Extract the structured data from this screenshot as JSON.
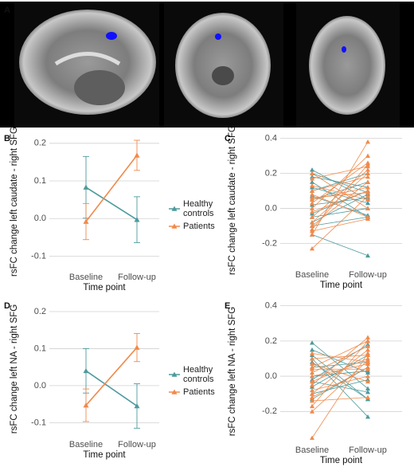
{
  "panel_a_label": "A",
  "chart_data": [
    {
      "type": "line",
      "panel": "B",
      "y_label": "rsFC change left caudate - right SFG",
      "x_label": "Time point",
      "categories": [
        "Baseline",
        "Follow-up"
      ],
      "ylim": [
        -0.135,
        0.225
      ],
      "yticks": [
        -0.1,
        {
          "value": 0,
          "label": "0.0"
        },
        0.1,
        0.2
      ],
      "grid": true,
      "series": [
        {
          "name": "Healthy controls",
          "color": "#4e9a9c",
          "values": [
            0.083,
            -0.003
          ],
          "errors": [
            0.082,
            0.061
          ]
        },
        {
          "name": "Patients",
          "color": "#f08a4b",
          "values": [
            -0.008,
            0.168
          ],
          "errors": [
            0.048,
            0.04
          ]
        }
      ]
    },
    {
      "type": "spaghetti",
      "panel": "C",
      "y_label": "rsFC change left caudate - right SFG",
      "x_label": "Time point",
      "categories": [
        "Baseline",
        "Follow-up"
      ],
      "ylim": [
        -0.335,
        0.43
      ],
      "yticks": [
        -0.2,
        {
          "value": 0,
          "label": "0.0"
        },
        0.2,
        0.4
      ],
      "grid": true,
      "series": [
        {
          "color": "#4e9a9c",
          "subjects": [
            [
              0.22,
              0.05
            ],
            [
              0.2,
              0.09
            ],
            [
              0.18,
              0.12
            ],
            [
              0.15,
              -0.05
            ],
            [
              0.1,
              0.2
            ],
            [
              0.05,
              0.15
            ],
            [
              0.02,
              0.06
            ],
            [
              -0.03,
              0.1
            ],
            [
              -0.05,
              0.0
            ],
            [
              -0.1,
              -0.05
            ],
            [
              -0.15,
              -0.27
            ],
            [
              0.12,
              0.03
            ],
            [
              0.07,
              -0.04
            ],
            [
              -0.08,
              0.08
            ]
          ]
        },
        {
          "color": "#f08a4b",
          "subjects": [
            [
              -0.23,
              0.07
            ],
            [
              -0.15,
              0.38
            ],
            [
              -0.12,
              0.25
            ],
            [
              -0.1,
              0.15
            ],
            [
              -0.08,
              0.2
            ],
            [
              -0.05,
              0.22
            ],
            [
              -0.02,
              0.1
            ],
            [
              0.0,
              0.3
            ],
            [
              0.03,
              0.26
            ],
            [
              0.05,
              0.12
            ],
            [
              0.08,
              -0.05
            ],
            [
              0.1,
              0.18
            ],
            [
              0.13,
              0.05
            ],
            [
              0.17,
              0.24
            ],
            [
              0.2,
              0.0
            ],
            [
              -0.13,
              -0.06
            ],
            [
              0.06,
              0.09
            ]
          ]
        }
      ]
    },
    {
      "type": "line",
      "panel": "D",
      "y_label": "rsFC change left NA - right SFG",
      "x_label": "Time point",
      "categories": [
        "Baseline",
        "Follow-up"
      ],
      "ylim": [
        -0.138,
        0.228
      ],
      "yticks": [
        -0.1,
        {
          "value": 0,
          "label": "0.0"
        },
        0.1,
        0.2
      ],
      "grid": true,
      "series": [
        {
          "name": "Healthy controls",
          "color": "#4e9a9c",
          "values": [
            0.04,
            -0.055
          ],
          "errors": [
            0.06,
            0.06
          ]
        },
        {
          "name": "Patients",
          "color": "#f08a4b",
          "values": [
            -0.053,
            0.103
          ],
          "errors": [
            0.044,
            0.038
          ]
        }
      ]
    },
    {
      "type": "spaghetti",
      "panel": "E",
      "y_label": "rsFC change left NA - right SFG",
      "x_label": "Time point",
      "categories": [
        "Baseline",
        "Follow-up"
      ],
      "ylim": [
        -0.375,
        0.43
      ],
      "yticks": [
        -0.2,
        {
          "value": 0,
          "label": "0.0"
        },
        0.2,
        0.4
      ],
      "grid": true,
      "series": [
        {
          "color": "#4e9a9c",
          "subjects": [
            [
              0.19,
              -0.07
            ],
            [
              0.15,
              0.02
            ],
            [
              0.12,
              -0.13
            ],
            [
              0.1,
              -0.23
            ],
            [
              0.05,
              0.08
            ],
            [
              0.0,
              0.03
            ],
            [
              -0.03,
              -0.09
            ],
            [
              -0.06,
              0.12
            ],
            [
              -0.1,
              -0.02
            ],
            [
              -0.13,
              0.05
            ],
            [
              0.08,
              -0.13
            ],
            [
              -0.02,
              0.18
            ]
          ]
        },
        {
          "color": "#f08a4b",
          "subjects": [
            [
              -0.35,
              0.13
            ],
            [
              -0.17,
              0.2
            ],
            [
              -0.12,
              0.05
            ],
            [
              -0.1,
              0.15
            ],
            [
              -0.08,
              0.0
            ],
            [
              -0.05,
              0.22
            ],
            [
              -0.03,
              0.1
            ],
            [
              0.0,
              0.07
            ],
            [
              0.02,
              0.17
            ],
            [
              0.05,
              0.2
            ],
            [
              0.07,
              -0.03
            ],
            [
              0.1,
              0.12
            ],
            [
              0.13,
              0.08
            ],
            [
              -0.14,
              -0.12
            ],
            [
              0.04,
              0.04
            ],
            [
              -0.2,
              0.09
            ]
          ]
        }
      ]
    }
  ]
}
